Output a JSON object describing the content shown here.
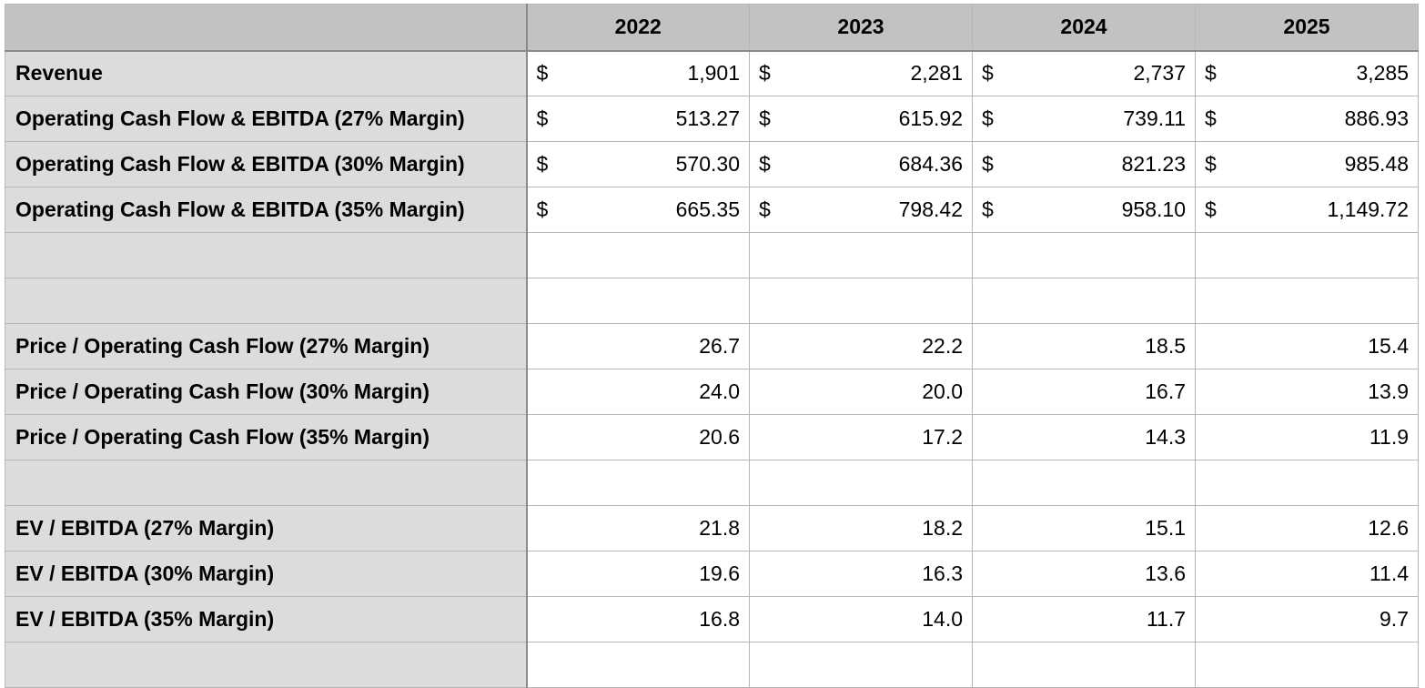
{
  "columns": [
    "",
    "2022",
    "2023",
    "2024",
    "2025"
  ],
  "currency_symbol": "$",
  "money_rows": [
    {
      "label": "Revenue",
      "values": [
        "1,901",
        "2,281",
        "2,737",
        "3,285"
      ]
    },
    {
      "label": "Operating Cash Flow & EBITDA (27% Margin)",
      "values": [
        "513.27",
        "615.92",
        "739.11",
        "886.93"
      ]
    },
    {
      "label": "Operating Cash Flow & EBITDA (30% Margin)",
      "values": [
        "570.30",
        "684.36",
        "821.23",
        "985.48"
      ]
    },
    {
      "label": "Operating Cash Flow & EBITDA (35% Margin)",
      "values": [
        "665.35",
        "798.42",
        "958.10",
        "1,149.72"
      ]
    }
  ],
  "pocf_rows": [
    {
      "label": "Price / Operating Cash Flow (27% Margin)",
      "values": [
        "26.7",
        "22.2",
        "18.5",
        "15.4"
      ]
    },
    {
      "label": "Price / Operating Cash Flow (30% Margin)",
      "values": [
        "24.0",
        "20.0",
        "16.7",
        "13.9"
      ]
    },
    {
      "label": "Price / Operating Cash Flow (35% Margin)",
      "values": [
        "20.6",
        "17.2",
        "14.3",
        "11.9"
      ]
    }
  ],
  "ev_rows": [
    {
      "label": "EV / EBITDA (27% Margin)",
      "values": [
        "21.8",
        "18.2",
        "15.1",
        "12.6"
      ]
    },
    {
      "label": "EV / EBITDA (30% Margin)",
      "values": [
        "19.6",
        "16.3",
        "13.6",
        "11.4"
      ]
    },
    {
      "label": "EV / EBITDA (35% Margin)",
      "values": [
        "16.8",
        "14.0",
        "11.7",
        "9.7"
      ]
    }
  ]
}
